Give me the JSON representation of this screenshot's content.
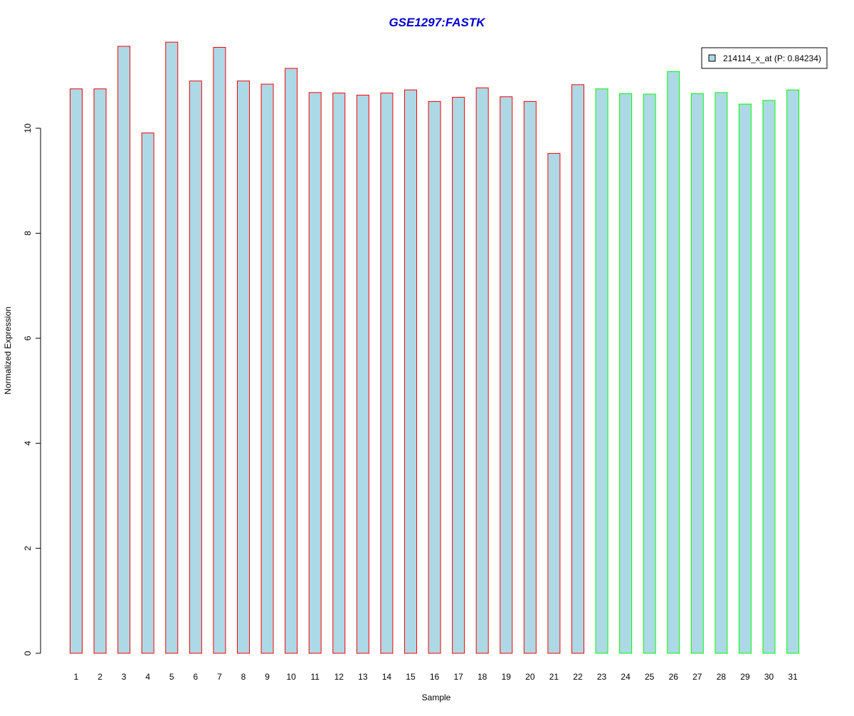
{
  "chart_data": {
    "type": "bar",
    "title": "GSE1297:FASTK",
    "xlabel": "Sample",
    "ylabel": "Normalized Expression",
    "ylim": [
      0,
      11.8
    ],
    "yticks": [
      0,
      2,
      4,
      6,
      8,
      10
    ],
    "grid": false,
    "legend_position": "top-right",
    "categories": [
      "1",
      "2",
      "3",
      "4",
      "5",
      "6",
      "7",
      "8",
      "9",
      "10",
      "11",
      "12",
      "13",
      "14",
      "15",
      "16",
      "17",
      "18",
      "19",
      "20",
      "21",
      "22",
      "23",
      "24",
      "25",
      "26",
      "27",
      "28",
      "29",
      "30",
      "31"
    ],
    "series": [
      {
        "name": "214114_x_at (P: 0.84234)",
        "values": [
          10.75,
          10.75,
          11.56,
          9.91,
          11.64,
          10.9,
          11.54,
          10.9,
          10.84,
          11.14,
          10.68,
          10.67,
          10.63,
          10.67,
          10.73,
          10.51,
          10.59,
          10.77,
          10.6,
          10.51,
          9.52,
          10.83,
          10.75,
          10.66,
          10.65,
          11.08,
          10.66,
          10.68,
          10.46,
          10.53,
          10.73
        ],
        "groups": [
          "a",
          "a",
          "a",
          "a",
          "a",
          "a",
          "a",
          "a",
          "a",
          "a",
          "a",
          "a",
          "a",
          "a",
          "a",
          "a",
          "a",
          "a",
          "a",
          "a",
          "a",
          "a",
          "b",
          "b",
          "b",
          "b",
          "b",
          "b",
          "b",
          "b",
          "b"
        ]
      }
    ],
    "colors": {
      "fill": "#add8e6",
      "group_a_border": "#ff0000",
      "group_b_border": "#00ff00",
      "title": "#0000cd",
      "axis": "#000000"
    }
  }
}
